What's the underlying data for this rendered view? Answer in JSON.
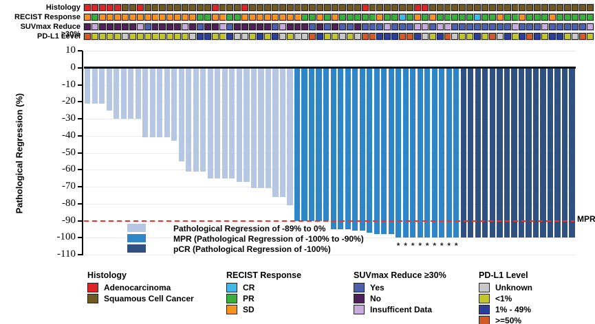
{
  "palette": {
    "a": "#E02428",
    "s": "#715A1F",
    "o": "#F6921E",
    "p": "#3BAF3B",
    "c": "#3FB9E9",
    "y": "#4C60AE",
    "n": "#4F2159",
    "i": "#C6ABDC",
    "u": "#C8C8C8",
    "l": "#C2C629",
    "m": "#2B3E9B",
    "h": "#CE5B28",
    "bar_light": "#B5C7E3",
    "bar_mpr": "#2E86C8",
    "bar_pcr": "#2E5182",
    "threshold_red": "#EE3224"
  },
  "tracks": {
    "rows": [
      {
        "label": "Histology",
        "cells": [
          "a",
          "a",
          "a",
          "a",
          "a",
          "s",
          "s",
          "a",
          "s",
          "s",
          "s",
          "s",
          "s",
          "s",
          "s",
          "s",
          "s",
          "a",
          "s",
          "s",
          "s",
          "a",
          "s",
          "s",
          "s",
          "s",
          "s",
          "s",
          "s",
          "s",
          "s",
          "s",
          "s",
          "s",
          "s",
          "s",
          "s",
          "a",
          "s",
          "s",
          "s",
          "s",
          "s",
          "s",
          "a",
          "a",
          "s",
          "s",
          "s",
          "s",
          "s",
          "s",
          "s",
          "s",
          "s",
          "s",
          "s",
          "s",
          "s",
          "s",
          "s",
          "s",
          "s",
          "s",
          "s",
          "s",
          "s",
          "s"
        ]
      },
      {
        "label": "RECIST Response",
        "cells": [
          "o",
          "p",
          "o",
          "o",
          "o",
          "o",
          "o",
          "o",
          "o",
          "o",
          "o",
          "o",
          "o",
          "o",
          "o",
          "p",
          "p",
          "o",
          "o",
          "p",
          "p",
          "o",
          "o",
          "o",
          "o",
          "o",
          "o",
          "o",
          "o",
          "p",
          "p",
          "o",
          "p",
          "o",
          "p",
          "p",
          "p",
          "p",
          "p",
          "o",
          "p",
          "p",
          "c",
          "p",
          "o",
          "p",
          "o",
          "p",
          "p",
          "p",
          "p",
          "p",
          "c",
          "p",
          "p",
          "o",
          "p",
          "p",
          "o",
          "p",
          "p",
          "p",
          "o",
          "p",
          "p",
          "p",
          "p",
          "p"
        ]
      },
      {
        "label": "SUVmax Reduce ≥30%",
        "cells": [
          "n",
          "i",
          "n",
          "n",
          "n",
          "n",
          "n",
          "i",
          "y",
          "n",
          "n",
          "n",
          "n",
          "i",
          "n",
          "y",
          "n",
          "n",
          "i",
          "y",
          "n",
          "n",
          "n",
          "n",
          "n",
          "y",
          "i",
          "n",
          "n",
          "n",
          "y",
          "n",
          "y",
          "n",
          "y",
          "y",
          "n",
          "y",
          "y",
          "y",
          "i",
          "y",
          "y",
          "y",
          "i",
          "i",
          "y",
          "i",
          "i",
          "y",
          "y",
          "y",
          "y",
          "y",
          "y",
          "y",
          "y",
          "i",
          "y",
          "y",
          "y",
          "i",
          "y",
          "y",
          "y",
          "y",
          "y",
          "i"
        ]
      },
      {
        "label": "PD-L1 Level",
        "cells": [
          "h",
          "l",
          "l",
          "l",
          "l",
          "u",
          "l",
          "l",
          "l",
          "l",
          "l",
          "l",
          "l",
          "l",
          "u",
          "m",
          "m",
          "l",
          "l",
          "m",
          "u",
          "u",
          "l",
          "m",
          "l",
          "m",
          "u",
          "l",
          "u",
          "u",
          "h",
          "m",
          "l",
          "l",
          "u",
          "l",
          "u",
          "h",
          "h",
          "m",
          "m",
          "m",
          "h",
          "h",
          "m",
          "u",
          "l",
          "m",
          "h",
          "u",
          "l",
          "l",
          "m",
          "l",
          "h",
          "u",
          "m",
          "l",
          "m",
          "h",
          "m",
          "l",
          "m",
          "m",
          "l",
          "u",
          "h",
          "l"
        ]
      }
    ]
  },
  "chart_data": {
    "type": "bar",
    "title": "",
    "xlabel": "",
    "ylabel": "Pathological Regression (%)",
    "ylim": [
      -110,
      10
    ],
    "yticks": [
      10,
      0,
      -10,
      -20,
      -30,
      -40,
      -50,
      -60,
      -70,
      -80,
      -90,
      -100,
      -110
    ],
    "grid": "horizontal",
    "threshold": {
      "value": -90,
      "label": "MPR"
    },
    "values": [
      -21,
      -21,
      -21,
      -25,
      -30,
      -30,
      -30,
      -30,
      -41,
      -41,
      -41,
      -41,
      -43,
      -55,
      -61,
      -61,
      -61,
      -65,
      -65,
      -65,
      -65,
      -67,
      -67,
      -71,
      -71,
      -71,
      -76,
      -76,
      -81,
      -90,
      -90,
      -90,
      -90,
      -90,
      -95,
      -95,
      -95,
      -96,
      -96,
      -97,
      -98,
      -98,
      -98,
      -100,
      -100,
      -100,
      -100,
      -100,
      -100,
      -100,
      -100,
      -100,
      -100,
      -100,
      -100,
      -100,
      -100,
      -100,
      -100,
      -100,
      -100,
      -100,
      -100,
      -100,
      -100,
      -100,
      -100,
      -100
    ],
    "groups": [
      "light",
      "light",
      "light",
      "light",
      "light",
      "light",
      "light",
      "light",
      "light",
      "light",
      "light",
      "light",
      "light",
      "light",
      "light",
      "light",
      "light",
      "light",
      "light",
      "light",
      "light",
      "light",
      "light",
      "light",
      "light",
      "light",
      "light",
      "light",
      "light",
      "mpr",
      "mpr",
      "mpr",
      "mpr",
      "mpr",
      "mpr",
      "mpr",
      "mpr",
      "mpr",
      "mpr",
      "mpr",
      "mpr",
      "mpr",
      "mpr",
      "mpr",
      "mpr",
      "mpr",
      "mpr",
      "mpr",
      "mpr",
      "mpr",
      "mpr",
      "mpr",
      "pcr",
      "pcr",
      "pcr",
      "pcr",
      "pcr",
      "pcr",
      "pcr",
      "pcr",
      "pcr",
      "pcr",
      "pcr",
      "pcr",
      "pcr",
      "pcr",
      "pcr",
      "pcr"
    ],
    "asterisk_bars": [
      44,
      45,
      46,
      47,
      48,
      49,
      50,
      51,
      52
    ],
    "legend_position": "lower left",
    "legend": [
      {
        "color_key": "bar_light",
        "label": "Pathological Regression of -89% to 0%"
      },
      {
        "color_key": "bar_mpr",
        "label": "MPR (Pathological Regression of -100% to -90%)"
      },
      {
        "color_key": "bar_pcr",
        "label": "pCR (Pathological Regression of -100%)"
      }
    ]
  },
  "bottom_legend": [
    {
      "title": "Histology",
      "x": 127,
      "items": [
        {
          "key": "a",
          "label": "Adenocarcinoma"
        },
        {
          "key": "s",
          "label": "Squamous Cell Cancer"
        }
      ]
    },
    {
      "title": "RECIST Response",
      "x": 329,
      "items": [
        {
          "key": "c",
          "label": "CR"
        },
        {
          "key": "p",
          "label": "PR"
        },
        {
          "key": "o",
          "label": "SD"
        }
      ]
    },
    {
      "title": "SUVmax Reduce ≥30%",
      "x": 514,
      "items": [
        {
          "key": "y",
          "label": "Yes"
        },
        {
          "key": "n",
          "label": "No"
        },
        {
          "key": "i",
          "label": "Insufficent Data"
        }
      ]
    },
    {
      "title": "PD-L1 Level",
      "x": 696,
      "items": [
        {
          "key": "u",
          "label": "Unknown"
        },
        {
          "key": "l",
          "label": "<1%"
        },
        {
          "key": "m",
          "label": "1% - 49%"
        },
        {
          "key": "h",
          "label": ">=50%"
        }
      ]
    }
  ]
}
